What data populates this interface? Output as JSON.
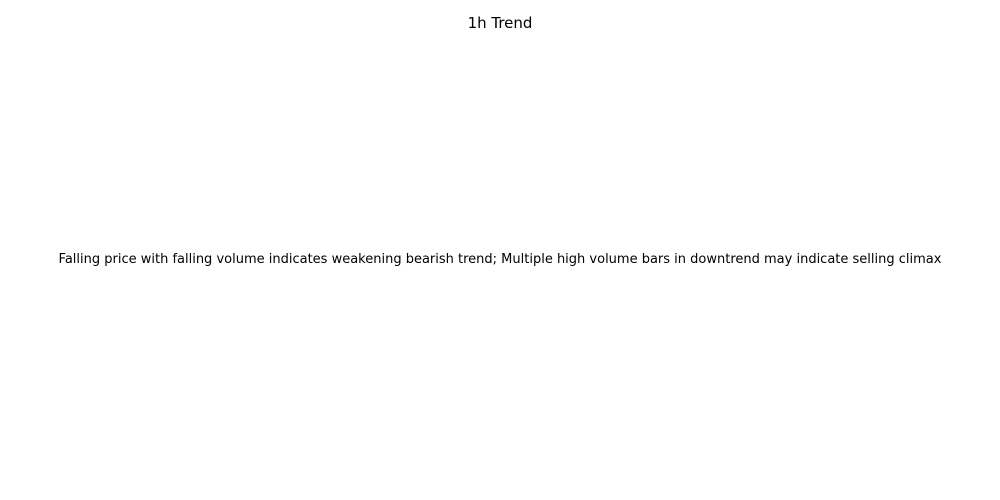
{
  "chart_data": {
    "type": "line",
    "title": "1h Trend",
    "xlabel": "",
    "ylabel": "",
    "series": [],
    "grid": false,
    "axes_visible": false,
    "annotations": [
      "Falling price with falling volume indicates weakening bearish trend; Multiple high volume bars in downtrend may indicate selling climax"
    ]
  }
}
